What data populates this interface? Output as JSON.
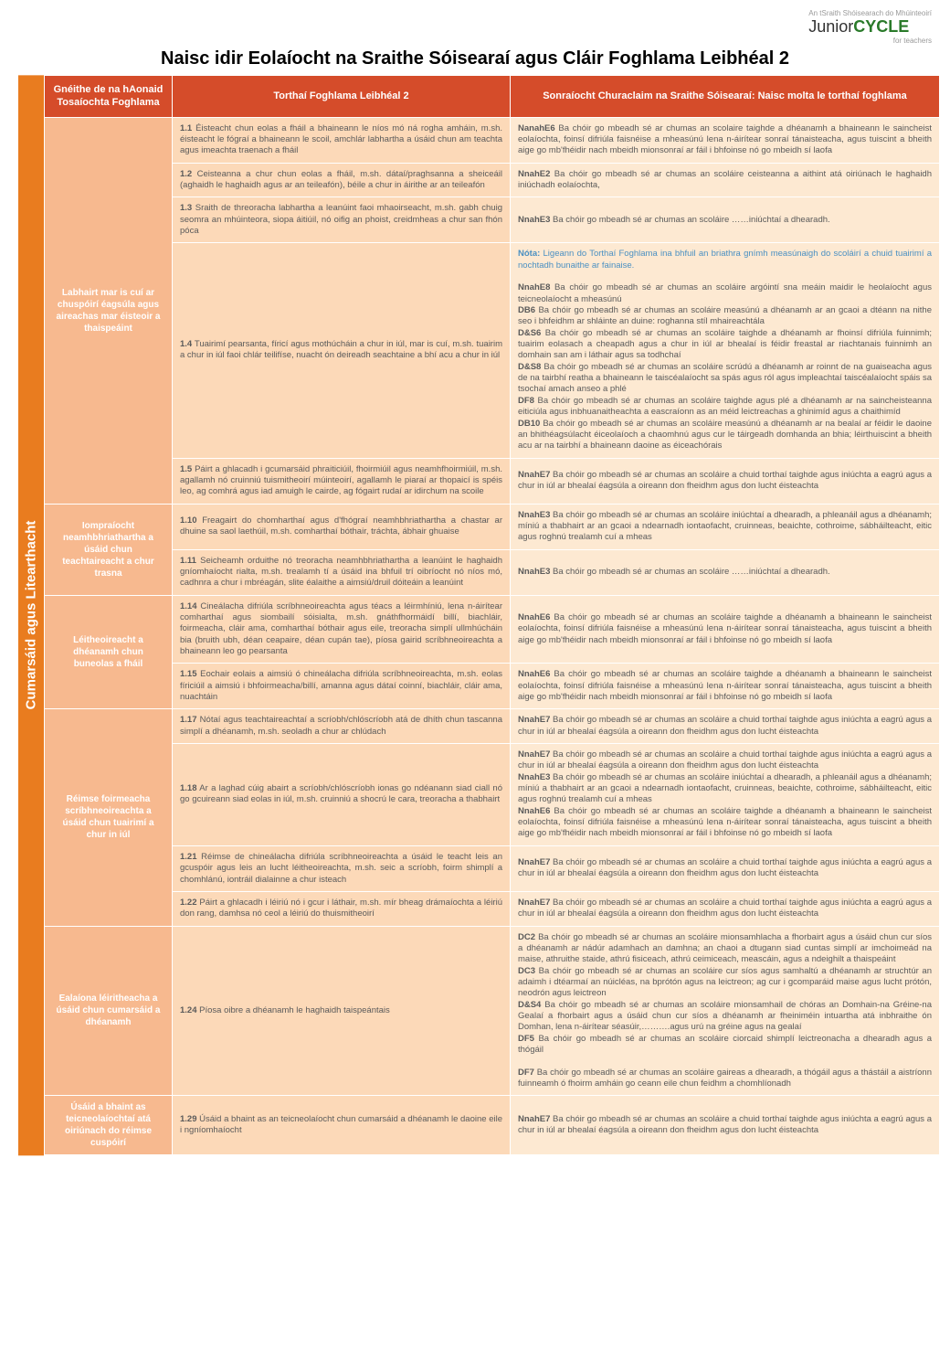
{
  "header": {
    "small_text": "An tSraith Shóisearach do Mhúinteoirí",
    "logo_junior": "Junior",
    "logo_cycle": "CYCLE",
    "logo_sub": "for teachers",
    "title": "Naisc idir Eolaíocht na Sraithe Sóisearaí agus Cláir Foghlama Leibhéal 2"
  },
  "columns": {
    "c1": "Gnéithe de na hAonaid Tosaíochta Foghlama",
    "c2": "Torthaí Foghlama Leibhéal 2",
    "c3": "Sonraíocht Churaclaim na Sraithe Sóisearaí: Naisc molta le torthaí foghlama"
  },
  "sidebar": "Cumarsáid agus Litearthacht",
  "rows": [
    {
      "head": "Labhairt mar is cuí ar chuspóirí éagsúla agus aireachas mar éisteoir a thaispeáint",
      "cells": [
        {
          "lo": "1.1 Éisteacht chun eolas a fháil a bhaineann le níos mó ná rogha amháin, m.sh. éisteacht le fógraí a bhaineann le scoil, amchlár labhartha a úsáid chun am teachta agus imeachta traenach a fháil",
          "spec": "<b>NanahE6</b> Ba chóir go mbeadh sé ar chumas an scolaire taighde a dhéanamh a bhaineann le saincheist eolaíochta, foinsí difriúla faisnéise a mheasúnú lena n-áirítear sonraí tánaisteacha, agus tuiscint a bheith aige go mb'fhéidir nach mbeidh mionsonraí ar fáil i bhfoinse nó go mbeidh sí laofa"
        },
        {
          "lo": "1.2 Ceisteanna a chur chun eolas a fháil, m.sh. dátaí/praghsanna a sheiceáil (aghaidh le haghaidh agus ar an teileafón), béile a chur in áirithe ar an teileafón",
          "spec": "<b>NnahE2</b> Ba chóir go mbeadh sé ar chumas an scoláire ceisteanna a aithint atá oiriúnach le haghaidh iniúchadh eolaíochta,"
        },
        {
          "lo": "1.3 Sraith de threoracha labhartha a leanúint faoi mhaoirseacht, m.sh. gabh chuig seomra an mhúinteora, siopa áitiúil, nó oifig an phoist, creidmheas a chur san fhón póca",
          "spec": "<b>NnahE3</b> Ba chóir go mbeadh sé ar chumas an scoláire ……iniúchtaí a dhearadh."
        },
        {
          "lo": "1.4 Tuairimí pearsanta, fíricí agus mothúcháin a chur in iúl, mar is cuí, m.sh. tuairim a chur in iúl faoi chlár teilifíse, nuacht ón deireadh seachtaine a bhí acu a chur in iúl",
          "spec": "<span class='note-blue'><b>Nóta:</b> Ligeann do Torthaí Foghlama ina bhfuil an briathra gnímh measúnaigh do scoláirí a chuid tuairimí a nochtadh bunaithe ar fainaise.</span><br><br><b>NnahE8</b> Ba chóir go mbeadh sé ar chumas an scoláire argóintí sna meáin maidir le heolaíocht agus teicneolaíocht a mheasúnú<br><b>DB6</b> Ba chóir go mbeadh sé ar chumas an scoláire measúnú a dhéanamh ar an gcaoi a dtéann na nithe seo i bhfeidhm ar shláinte an duine: roghanna stíl mhaireachtála<br><b>D&S6</b> Ba chóir go mbeadh sé ar chumas an scoláire taighde a dhéanamh ar fhoinsí difriúla fuinnimh; tuairim eolasach a cheapadh agus a chur in iúl ar bhealaí is féidir freastal ar riachtanais fuinnimh an domhain san am i láthair agus sa todhchaí<br><b>D&S8</b> Ba chóir go mbeadh sé ar chumas an scoláire scrúdú a dhéanamh ar roinnt de na guaiseacha agus de na tairbhí reatha a bhaineann le taiscéalaíocht sa spás agus ról agus impleachtaí taiscéalaíocht spáis sa tsochaí amach anseo a phlé<br><b>DF8</b> Ba chóir go mbeadh sé ar chumas an scoláire taighde agus plé a dhéanamh ar na saincheisteanna eiticiúla agus inbhuanaitheachta a eascraíonn as an méid leictreachas a ghinimíd agus a chaithimíd<br><b>DB10</b> Ba chóir go mbeadh sé ar chumas an scoláire measúnú a dhéanamh ar na bealaí ar féidir le daoine an bhithéagsúlacht éiceolaíoch a chaomhnú agus cur le táirgeadh domhanda an bhia; léirthuiscint a bheith acu ar na tairbhí a bhaineann daoine as éiceachórais"
        },
        {
          "lo": "1.5 Páirt a ghlacadh i gcumarsáid phraiticiúil, fhoirmiúil agus neamhfhoirmiúil, m.sh. agallamh nó cruinniú tuismitheoirí múinteoirí, agallamh le piaraí ar thopaicí is spéis leo, ag comhrá agus iad amuigh le cairde, ag fógairt rudaí ar idirchum na scoile",
          "spec": "<b>NnahE7</b> Ba chóir go mbeadh sé ar chumas an scoláire a chuid torthaí taighde agus iniúchta a eagrú agus a chur in iúl ar bhealaí éagsúla a oireann don fheidhm agus don lucht éisteachta"
        }
      ]
    },
    {
      "head": "Iompraíocht neamhbhriathartha a úsáid chun teachtaireacht a chur trasna",
      "cells": [
        {
          "lo": "1.10 Freagairt do chomharthaí agus d'fhógraí neamhbhriathartha a chastar ar dhuine sa saol laethúil, m.sh. comharthaí bóthair, tráchta, ábhair ghuaise",
          "spec": "<b>NnahE3</b> Ba chóir go mbeadh sé ar chumas an scoláire iniúchtaí a dhearadh, a phleanáil agus a dhéanamh; míniú a thabhairt ar an gcaoi a ndearnadh iontaofacht, cruinneas, beaichte, cothroime, sábháilteacht, eitic agus roghnú trealamh cuí a mheas"
        },
        {
          "lo": "1.11 Seicheamh orduithe nó treoracha neamhbhriathartha a leanúint le haghaidh gníomhaíocht rialta, m.sh. trealamh tí a úsáid ina bhfuil trí oibríocht nó níos mó, cadhnra a chur i mbréagán, slite éalaithe a aimsiú/druil dóiteáin a leanúint",
          "spec": "<b>NnahE3</b> Ba chóir go mbeadh sé ar chumas an scoláire ……iniúchtaí a dhearadh."
        }
      ]
    },
    {
      "head": "Léitheoireacht a dhéanamh chun buneolas a fháil",
      "cells": [
        {
          "lo": "1.14 Cineálacha difriúla scríbhneoireachta agus téacs a léirmhíniú, lena n-áirítear comharthaí agus siombailí sóisialta, m.sh. gnáthfhormáidí billí, biachláir, foirmeacha, cláir ama, comharthaí bóthair agus eile, treoracha simplí ullmhúcháin bia (bruith ubh, déan ceapaire, déan cupán tae), píosa gairid scríbhneoireachta a bhaineann leo go pearsanta",
          "spec": "<b>NnahE6</b> Ba chóir go mbeadh sé ar chumas an scoláire taighde a dhéanamh a bhaineann le saincheist eolaíochta, foinsí difriúla faisnéise a mheasúnú lena n-áirítear sonraí tánaisteacha, agus tuiscint a bheith aige go mb'fhéidir nach mbeidh mionsonraí ar fáil i bhfoinse nó go mbeidh sí laofa"
        },
        {
          "lo": "1.15 Eochair eolais a aimsiú ó chineálacha difriúla scríbhneoireachta, m.sh. eolas fíriciúil a aimsiú i bhfoirmeacha/billí, amanna agus dátaí coinní, biachláir, cláir ama, nuachtáin",
          "spec": "<b>NnahE6</b> Ba chóir go mbeadh sé ar chumas an scoláire taighde a dhéanamh a bhaineann le saincheist eolaíochta, foinsí difriúla faisnéise a mheasúnú lena n-áirítear sonraí tánaisteacha, agus tuiscint a bheith aige go mb'fhéidir nach mbeidh mionsonraí ar fáil i bhfoinse nó go mbeidh sí laofa"
        }
      ]
    },
    {
      "head": "Réimse foirmeacha scríbhneoireachta a úsáid chun tuairimí a chur in iúl",
      "cells": [
        {
          "lo": "1.17 Nótaí agus teachtaireachtaí a scríobh/chlóscríobh atá de dhíth chun tascanna simplí a dhéanamh, m.sh. seoladh a chur ar chlúdach",
          "spec": "<b>NnahE7</b> Ba chóir go mbeadh sé ar chumas an scoláire a chuid torthaí taighde agus iniúchta a eagrú agus a chur in iúl ar bhealaí éagsúla a oireann don fheidhm agus don lucht éisteachta"
        },
        {
          "lo": "1.18 Ar a laghad cúig abairt a scríobh/chlóscríobh ionas go ndéanann siad ciall nó go gcuireann siad eolas in iúl, m.sh. cruinniú a shocrú le cara, treoracha a thabhairt",
          "spec": "<b>NnahE7</b> Ba chóir go mbeadh sé ar chumas an scoláire a chuid torthaí taighde agus iniúchta a eagrú agus a chur in iúl ar bhealaí éagsúla a oireann don fheidhm agus don lucht éisteachta<br><b>NnahE3</b> Ba chóir go mbeadh sé ar chumas an scoláire iniúchtaí a dhearadh, a phleanáil agus a dhéanamh; míniú a thabhairt ar an gcaoi a ndearnadh iontaofacht, cruinneas, beaichte, cothroime, sábháilteacht, eitic agus roghnú trealamh cuí a mheas<br><b>NnahE6</b> Ba chóir go mbeadh sé ar chumas an scoláire taighde a dhéanamh a bhaineann le saincheist eolaíochta, foinsí difriúla faisnéise a mheasúnú lena n-áirítear sonraí tánaisteacha, agus tuiscint a bheith aige go mb'fhéidir nach mbeidh mionsonraí ar fáil i bhfoinse nó go mbeidh sí laofa"
        },
        {
          "lo": "1.21 Réimse de chineálacha difriúla scríbhneoireachta a úsáid le teacht leis an gcuspóir agus leis an lucht léitheoireachta, m.sh. seic a scríobh, foirm shimplí a chomhlánú, iontráil dialainne a chur isteach",
          "spec": "<b>NnahE7</b> Ba chóir go mbeadh sé ar chumas an scoláire a chuid torthaí taighde agus iniúchta a eagrú agus a chur in iúl ar bhealaí éagsúla a oireann don fheidhm agus don lucht éisteachta"
        },
        {
          "lo": "1.22 Páirt a ghlacadh i léiriú nó i gcur i láthair, m.sh. mír bheag drámaíochta a léiriú don rang, damhsa nó ceol a léiriú do thuismitheoirí",
          "spec": "<b>NnahE7</b> Ba chóir go mbeadh sé ar chumas an scoláire a chuid torthaí taighde agus iniúchta a eagrú agus a chur in iúl ar bhealaí éagsúla a oireann don fheidhm agus don lucht éisteachta"
        }
      ]
    },
    {
      "head": "Ealaíona léiritheacha a úsáid chun cumarsáid a dhéanamh",
      "cells": [
        {
          "lo": "1.24 Píosa oibre a dhéanamh le haghaidh taispeántais",
          "spec": "<b>DC2</b> Ba chóir go mbeadh sé ar chumas an scoláire mionsamhlacha a fhorbairt agus a úsáid chun cur síos a dhéanamh ar nádúr adamhach an damhna; an chaoi a dtugann siad cuntas simplí ar imchoimeád na maise, athruithe staide, athrú fisiceach, athrú ceimiceach, meascáin, agus a ndeighilt a thaispeáint<br><b>DC3</b> Ba chóir go mbeadh sé ar chumas an scoláire cur síos agus samhaltú a dhéanamh ar struchtúr an adaimh i dtéarmaí an núicléas, na bprótón agus na leictreon; ag cur i gcomparáid maise agus lucht prótón, neodrón agus leictreon<br><b>D&S4</b> Ba chóir go mbeadh sé ar chumas an scoláire mionsamhail de chóras an Domhain-na Gréine-na Gealaí a fhorbairt agus a úsáid chun cur síos a dhéanamh ar fheiniméin intuartha atá inbhraithe ón Domhan, lena n-áirítear séasúir,……….agus urú na gréine agus na gealaí<br><b>DF5</b> Ba chóir go mbeadh sé ar chumas an scoláire ciorcaid shimplí leictreonacha a dhearadh agus a thógáil<br><br><b>DF7</b> Ba chóir go mbeadh sé ar chumas an scoláire gaireas a dhearadh, a thógáil agus a thástáil a aistríonn fuinneamh ó fhoirm amháin go ceann eile chun feidhm a chomhlíonadh"
        }
      ]
    },
    {
      "head": "Úsáid a bhaint as teicneolaíochtaí atá oiriúnach do réimse cuspóirí",
      "cells": [
        {
          "lo": "1.29 Úsáid a bhaint as an teicneolaíocht chun cumarsáid a dhéanamh le daoine eile i ngníomhaíocht",
          "spec": "<b>NnahE7</b> Ba chóir go mbeadh sé ar chumas an scoláire a chuid torthaí taighde agus iniúchta a eagrú agus a chur in iúl ar bhealaí éagsúla a oireann don fheidhm agus don lucht éisteachta"
        }
      ]
    }
  ]
}
